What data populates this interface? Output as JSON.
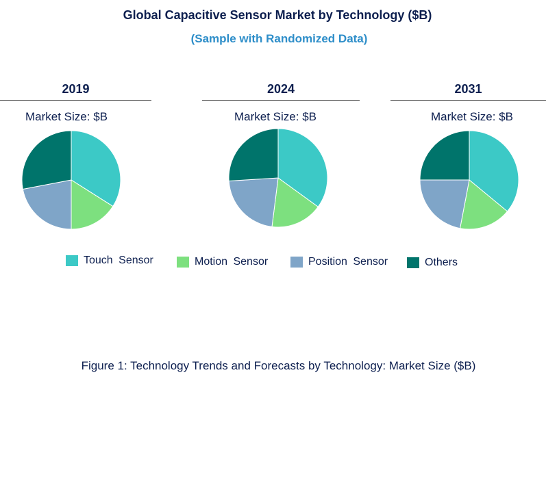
{
  "header": {
    "title": "Global Capacitive Sensor Market by Technology ($B)",
    "subtitle": "(Sample with Randomized Data)"
  },
  "caption": "Figure 1: Technology Trends and Forecasts by Technology: Market Size ($B)",
  "colors": {
    "touch": "#3cc9c6",
    "motion": "#7de07f",
    "position": "#7fa5c8",
    "others": "#00746b"
  },
  "chart_data": [
    {
      "type": "pie",
      "year": "2019",
      "subtitle": "Market Size: $B",
      "slices": [
        {
          "name": "Touch Sensor",
          "value": 34
        },
        {
          "name": "Motion Sensor",
          "value": 16
        },
        {
          "name": "Position Sensor",
          "value": 22
        },
        {
          "name": "Others",
          "value": 28
        }
      ]
    },
    {
      "type": "pie",
      "year": "2024",
      "subtitle": "Market Size: $B",
      "slices": [
        {
          "name": "Touch Sensor",
          "value": 35
        },
        {
          "name": "Motion Sensor",
          "value": 17
        },
        {
          "name": "Position Sensor",
          "value": 22
        },
        {
          "name": "Others",
          "value": 26
        }
      ]
    },
    {
      "type": "pie",
      "year": "2031",
      "subtitle": "Market Size: $B",
      "slices": [
        {
          "name": "Touch Sensor",
          "value": 36
        },
        {
          "name": "Motion Sensor",
          "value": 17
        },
        {
          "name": "Position Sensor",
          "value": 22
        },
        {
          "name": "Others",
          "value": 25
        }
      ]
    }
  ],
  "legend": [
    {
      "label": "Touch  Sensor",
      "color": "#3cc9c6"
    },
    {
      "label": "Motion  Sensor",
      "color": "#7de07f"
    },
    {
      "label": "Position  Sensor",
      "color": "#7fa5c8"
    },
    {
      "label": "Others",
      "color": "#00746b"
    }
  ]
}
